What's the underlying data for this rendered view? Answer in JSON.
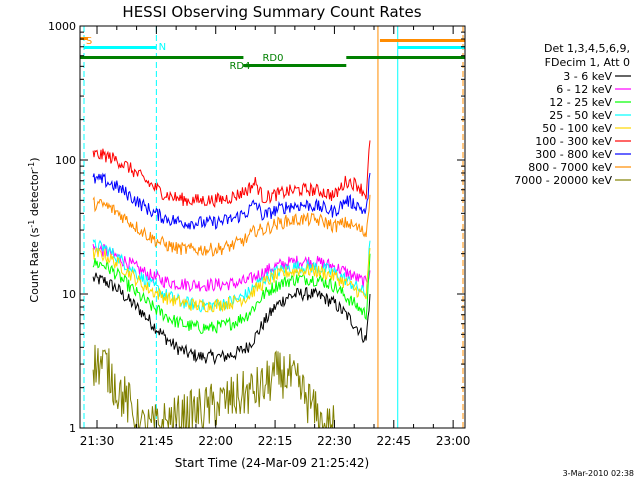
{
  "chart_data": {
    "type": "line",
    "title": "HESSI Observing Summary Count Rates",
    "ylabel_prefix": "Count Rate (s",
    "ylabel_sup1": "-1",
    "ylabel_mid": " detector",
    "ylabel_sup2": "-1",
    "ylabel_suffix": ")",
    "xlabel": "Start Time (24-Mar-09 21:25:42)",
    "footer": "3-Mar-2010 02:38",
    "y_scale": "log",
    "ylim": [
      1,
      1000
    ],
    "xlim": [
      "21:25:42",
      "23:03:00"
    ],
    "y_ticks": [
      "1",
      "10",
      "100",
      "1000"
    ],
    "x_ticks": [
      "21:30",
      "21:45",
      "22:00",
      "22:15",
      "22:30",
      "22:45",
      "23:00"
    ],
    "legend_header": [
      "Det 1,3,4,5,6,9,",
      "FDecim 1, Att 0"
    ],
    "legend_placement": "right",
    "x_breaks": [
      "21:29",
      "21:43",
      "22:39"
    ],
    "series": [
      {
        "name": "3 - 6 keV",
        "color": "#000000",
        "x": [
          "21:29",
          "21:32",
          "21:35",
          "21:38",
          "21:41",
          "21:44",
          "21:47",
          "21:50",
          "21:53",
          "21:56",
          "21:59",
          "22:02",
          "22:05",
          "22:08",
          "22:10",
          "22:12",
          "22:15",
          "22:18",
          "22:21",
          "22:24",
          "22:27",
          "22:30",
          "22:33",
          "22:36",
          "22:38",
          "22:39"
        ],
        "values": [
          13,
          12.5,
          11,
          9,
          7.5,
          6,
          4.8,
          4,
          3.6,
          3.4,
          3.4,
          3.4,
          3.6,
          4,
          4.8,
          6,
          8,
          9.5,
          10,
          10,
          9.5,
          8.5,
          7,
          5.5,
          4.5,
          10
        ]
      },
      {
        "name": "6 - 12 keV",
        "color": "#ff00ff",
        "x": [
          "21:29",
          "21:32",
          "21:35",
          "21:38",
          "21:41",
          "21:44",
          "21:47",
          "21:50",
          "21:53",
          "21:56",
          "21:59",
          "22:02",
          "22:05",
          "22:08",
          "22:10",
          "22:12",
          "22:15",
          "22:18",
          "22:21",
          "22:24",
          "22:27",
          "22:30",
          "22:33",
          "22:36",
          "22:38",
          "22:39"
        ],
        "values": [
          22,
          21,
          19,
          17,
          15,
          13.5,
          12.5,
          12,
          11.8,
          11.7,
          11.7,
          11.8,
          12,
          12.5,
          13.5,
          14.5,
          16,
          17,
          17.5,
          17.5,
          17,
          16,
          14.5,
          13,
          12,
          15
        ]
      },
      {
        "name": "12 - 25 keV",
        "color": "#00ff00",
        "x": [
          "21:29",
          "21:32",
          "21:35",
          "21:38",
          "21:41",
          "21:44",
          "21:47",
          "21:50",
          "21:53",
          "21:56",
          "21:59",
          "22:02",
          "22:05",
          "22:08",
          "22:10",
          "22:12",
          "22:15",
          "22:18",
          "22:21",
          "22:24",
          "22:27",
          "22:30",
          "22:33",
          "22:36",
          "22:38",
          "22:39"
        ],
        "values": [
          17,
          16.5,
          14,
          11.5,
          9.5,
          8,
          7,
          6.2,
          5.8,
          5.6,
          5.6,
          5.8,
          6.2,
          7,
          8.2,
          9.8,
          11.5,
          12.5,
          13,
          13,
          12.5,
          11.5,
          9.5,
          8,
          7,
          20
        ]
      },
      {
        "name": "25 - 50 keV",
        "color": "#00ffff",
        "x": [
          "21:29",
          "21:32",
          "21:35",
          "21:38",
          "21:41",
          "21:44",
          "21:47",
          "21:50",
          "21:53",
          "21:56",
          "21:59",
          "22:02",
          "22:05",
          "22:08",
          "22:10",
          "22:12",
          "22:15",
          "22:18",
          "22:21",
          "22:24",
          "22:27",
          "22:30",
          "22:33",
          "22:36",
          "22:38",
          "22:39"
        ],
        "values": [
          23,
          22,
          19,
          16,
          13.5,
          11.5,
          10,
          9,
          8.5,
          8.2,
          8.2,
          8.5,
          9,
          10,
          11.5,
          12.8,
          14.5,
          15.5,
          16,
          16,
          15.5,
          14.5,
          12.8,
          11,
          10,
          25
        ]
      },
      {
        "name": "50 - 100 keV",
        "color": "#ffd700",
        "x": [
          "21:29",
          "21:32",
          "21:35",
          "21:38",
          "21:41",
          "21:44",
          "21:47",
          "21:50",
          "21:53",
          "21:56",
          "21:59",
          "22:02",
          "22:05",
          "22:08",
          "22:10",
          "22:12",
          "22:15",
          "22:18",
          "22:21",
          "22:24",
          "22:27",
          "22:30",
          "22:33",
          "22:36",
          "22:38",
          "22:39"
        ],
        "values": [
          20,
          19.5,
          17,
          14.5,
          12,
          10.5,
          9.5,
          8.8,
          8.4,
          8.2,
          8.2,
          8.4,
          8.8,
          9.5,
          10.8,
          12,
          13.5,
          14.5,
          15,
          15,
          14.5,
          13.5,
          12,
          10.5,
          9.5,
          22
        ]
      },
      {
        "name": "100 - 300 keV",
        "color": "#ff0000",
        "x": [
          "21:29",
          "21:32",
          "21:35",
          "21:38",
          "21:41",
          "21:44",
          "21:47",
          "21:50",
          "21:53",
          "21:56",
          "21:59",
          "22:02",
          "22:05",
          "22:08",
          "22:10",
          "22:12",
          "22:15",
          "22:18",
          "22:21",
          "22:24",
          "22:27",
          "22:30",
          "22:33",
          "22:36",
          "22:38",
          "22:39"
        ],
        "values": [
          110,
          108,
          100,
          88,
          75,
          64,
          56,
          52,
          50,
          50,
          50,
          51,
          54,
          60,
          68,
          52,
          55,
          58,
          60,
          60,
          58,
          54,
          70,
          65,
          55,
          140
        ]
      },
      {
        "name": "300 - 800 keV",
        "color": "#0000ff",
        "x": [
          "21:29",
          "21:32",
          "21:35",
          "21:38",
          "21:41",
          "21:44",
          "21:47",
          "21:50",
          "21:53",
          "21:56",
          "21:59",
          "22:02",
          "22:05",
          "22:08",
          "22:10",
          "22:12",
          "22:15",
          "22:18",
          "22:21",
          "22:24",
          "22:27",
          "22:30",
          "22:33",
          "22:36",
          "22:38",
          "22:39"
        ],
        "values": [
          72,
          70,
          63,
          55,
          47,
          41,
          37,
          35,
          34,
          34,
          34,
          35,
          37,
          41,
          48,
          38,
          42,
          45,
          46,
          46,
          44,
          41,
          50,
          46,
          40,
          80
        ]
      },
      {
        "name": "800 - 7000 keV",
        "color": "#ff8c00",
        "x": [
          "21:29",
          "21:32",
          "21:35",
          "21:38",
          "21:41",
          "21:44",
          "21:47",
          "21:50",
          "21:53",
          "21:56",
          "21:59",
          "22:02",
          "22:05",
          "22:08",
          "22:10",
          "22:12",
          "22:15",
          "22:18",
          "22:21",
          "22:24",
          "22:27",
          "22:30",
          "22:33",
          "22:36",
          "22:38",
          "22:39"
        ],
        "values": [
          47,
          46,
          41,
          35,
          30,
          26,
          23.5,
          22,
          21.5,
          21.5,
          21.5,
          22,
          23.5,
          26,
          30,
          30,
          33,
          35,
          36,
          36,
          35,
          32,
          34,
          31,
          28,
          55
        ]
      },
      {
        "name": "7000 - 20000 keV",
        "color": "#808000",
        "x": [
          "21:29",
          "21:32",
          "21:35",
          "21:38",
          "21:41",
          "21:44",
          "22:12",
          "22:15",
          "22:18",
          "22:21",
          "22:24",
          "22:27",
          "22:30"
        ],
        "values": [
          3,
          3,
          2,
          1.5,
          1,
          1,
          2,
          2.5,
          2.5,
          2,
          1.5,
          1,
          1
        ]
      }
    ],
    "annotations": [
      {
        "text": "S",
        "color": "#ff8c00"
      },
      {
        "text": "N",
        "color": "#00ffff"
      },
      {
        "text": "RD0",
        "color": "#008000"
      },
      {
        "text": "RD4",
        "color": "#008000"
      }
    ]
  }
}
